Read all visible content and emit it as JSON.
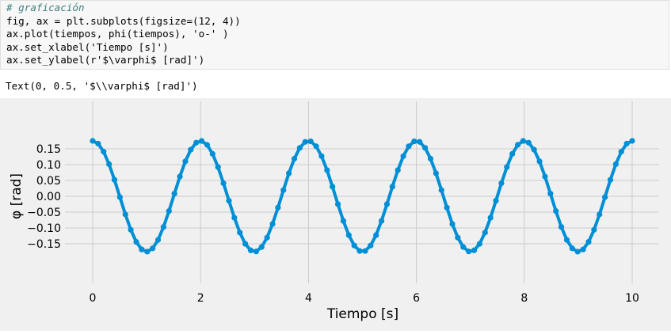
{
  "code_cell": {
    "lines": [
      "# graficación",
      "fig, ax = plt.subplots(figsize=(12, 4))",
      "ax.plot(tiempos, phi(tiempos), 'o-' )",
      "ax.set_xlabel('Tiempo [s]')",
      "ax.set_ylabel(r'$\\varphi$ [rad]')"
    ]
  },
  "output_text": "Text(0, 0.5, '$\\\\varphi$ [rad]')",
  "colors": {
    "line": "#008fd5",
    "plot_bg": "#f0f0f0",
    "grid": "#cbcbcb"
  },
  "chart_data": {
    "type": "line",
    "style": "fivethirtyeight",
    "marker": "o",
    "xlabel": "Tiempo [s]",
    "ylabel": "φ [rad]",
    "xlim": [
      0,
      10
    ],
    "ylim": [
      -0.175,
      0.175
    ],
    "xticks": [
      0,
      2,
      4,
      6,
      8,
      10
    ],
    "yticks": [
      0.15,
      0.1,
      0.05,
      0.0,
      -0.05,
      -0.1,
      -0.15
    ],
    "ytick_labels": [
      "0.15",
      "0.10",
      "0.05",
      "0.00",
      "−0.05",
      "−0.10",
      "−0.15"
    ],
    "grid": true,
    "series": [
      {
        "amplitude": 0.175,
        "period": 2.0,
        "phase": "cosine",
        "x_start": 0,
        "x_end": 10,
        "num_points": 100
      }
    ]
  }
}
